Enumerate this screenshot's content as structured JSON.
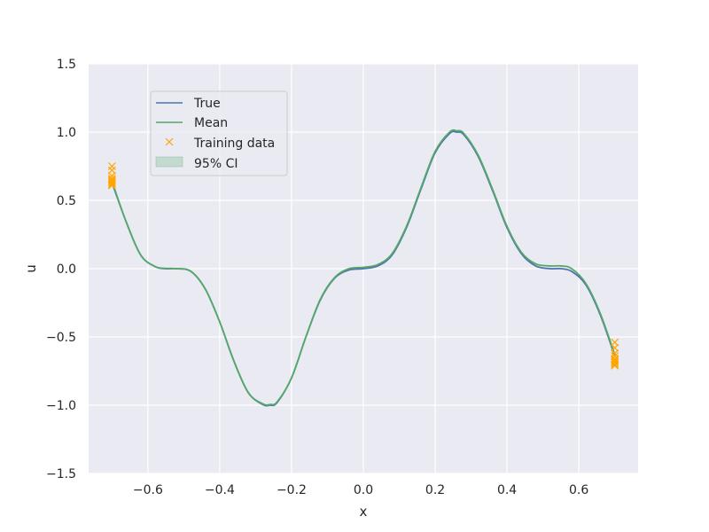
{
  "chart_data": {
    "type": "line",
    "title": "",
    "xlabel": "x",
    "ylabel": "u",
    "xlim": [
      -0.765,
      0.765
    ],
    "ylim": [
      -1.5,
      1.5
    ],
    "xticks": [
      -0.6,
      -0.4,
      -0.2,
      0.0,
      0.2,
      0.4,
      0.6
    ],
    "yticks": [
      -1.5,
      -1.0,
      -0.5,
      0.0,
      0.5,
      1.0,
      1.5
    ],
    "xtick_labels": [
      "−0.6",
      "−0.4",
      "−0.2",
      "0.0",
      "0.2",
      "0.4",
      "0.6"
    ],
    "ytick_labels": [
      "−1.5",
      "−1.0",
      "−0.5",
      "0.0",
      "0.5",
      "1.0",
      "1.5"
    ],
    "grid": true,
    "legend_position": "upper-left",
    "colors": {
      "true": "#4c72b0",
      "mean": "#55a868",
      "training": "#ffa500",
      "ci": "#55a868",
      "background": "#eaeaf2",
      "grid": "#ffffff"
    },
    "legend": [
      {
        "label": "True",
        "kind": "line",
        "series": "true"
      },
      {
        "label": "Mean",
        "kind": "line",
        "series": "mean"
      },
      {
        "label": "Training data",
        "kind": "marker",
        "series": "training"
      },
      {
        "label": "95% CI",
        "kind": "patch",
        "series": "ci"
      }
    ],
    "series": [
      {
        "name": "True",
        "key": "true",
        "x": [
          -0.7,
          -0.66,
          -0.62,
          -0.58,
          -0.55,
          -0.52,
          -0.48,
          -0.44,
          -0.4,
          -0.36,
          -0.32,
          -0.28,
          -0.26,
          -0.24,
          -0.2,
          -0.16,
          -0.12,
          -0.08,
          -0.04,
          0.0,
          0.04,
          0.08,
          0.12,
          0.16,
          0.2,
          0.24,
          0.26,
          0.28,
          0.32,
          0.36,
          0.4,
          0.44,
          0.48,
          0.52,
          0.55,
          0.58,
          0.62,
          0.66,
          0.7
        ],
        "y": [
          0.63,
          0.34,
          0.1,
          0.015,
          0.0,
          0.0,
          -0.02,
          -0.15,
          -0.39,
          -0.68,
          -0.91,
          -0.995,
          -1.0,
          -0.98,
          -0.8,
          -0.5,
          -0.23,
          -0.07,
          -0.01,
          0.0,
          0.02,
          0.1,
          0.3,
          0.58,
          0.85,
          0.99,
          1.0,
          0.98,
          0.82,
          0.57,
          0.3,
          0.11,
          0.02,
          0.0,
          0.0,
          -0.02,
          -0.12,
          -0.34,
          -0.64
        ]
      },
      {
        "name": "Mean",
        "key": "mean",
        "x": [
          -0.7,
          -0.66,
          -0.62,
          -0.58,
          -0.55,
          -0.52,
          -0.48,
          -0.44,
          -0.4,
          -0.36,
          -0.32,
          -0.28,
          -0.26,
          -0.24,
          -0.2,
          -0.16,
          -0.12,
          -0.08,
          -0.04,
          0.0,
          0.04,
          0.08,
          0.12,
          0.16,
          0.2,
          0.24,
          0.26,
          0.28,
          0.32,
          0.36,
          0.4,
          0.44,
          0.48,
          0.52,
          0.55,
          0.58,
          0.62,
          0.66,
          0.7
        ],
        "y": [
          0.64,
          0.34,
          0.1,
          0.016,
          0.002,
          0.0,
          -0.02,
          -0.15,
          -0.39,
          -0.68,
          -0.91,
          -0.99,
          -0.995,
          -0.975,
          -0.8,
          -0.5,
          -0.225,
          -0.065,
          0.0,
          0.01,
          0.03,
          0.11,
          0.31,
          0.59,
          0.86,
          1.0,
          1.01,
          0.99,
          0.83,
          0.58,
          0.31,
          0.12,
          0.035,
          0.02,
          0.02,
          0.0,
          -0.11,
          -0.33,
          -0.63
        ]
      }
    ],
    "training_data": {
      "name": "Training data",
      "x": [
        -0.7,
        -0.7,
        -0.7,
        -0.7,
        -0.7,
        -0.7,
        -0.7,
        -0.7,
        -0.7,
        0.7,
        0.7,
        0.7,
        0.7,
        0.7,
        0.7,
        0.7,
        0.7,
        0.7,
        0.7
      ],
      "y": [
        0.75,
        0.72,
        0.68,
        0.66,
        0.65,
        0.64,
        0.63,
        0.62,
        0.61,
        -0.54,
        -0.58,
        -0.62,
        -0.64,
        -0.66,
        -0.67,
        -0.68,
        -0.69,
        -0.7,
        -0.71
      ]
    }
  }
}
